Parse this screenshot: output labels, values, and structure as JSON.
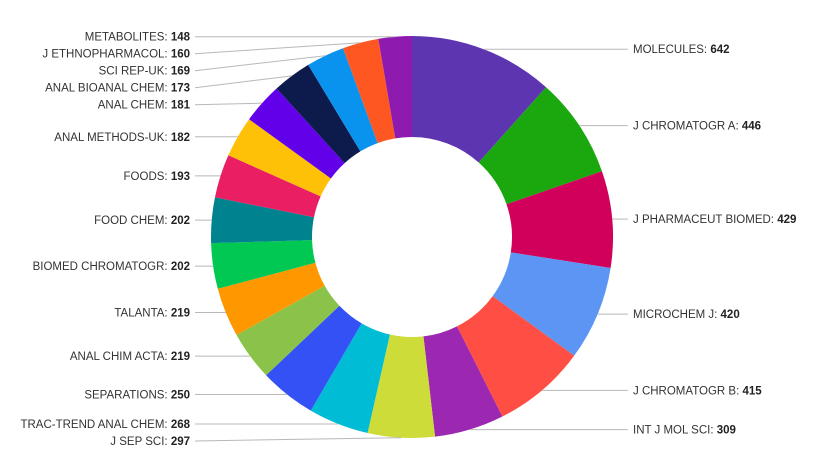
{
  "chart_data": {
    "type": "pie",
    "variant": "donut",
    "legend": "none",
    "slices": [
      {
        "label": "MOLECULES",
        "value": 642,
        "color": "#5e35b1"
      },
      {
        "label": "J CHROMATOGR A",
        "value": 446,
        "color": "#1aa80e"
      },
      {
        "label": "J PHARMACEUT BIOMED",
        "value": 429,
        "color": "#d1005a"
      },
      {
        "label": "MICROCHEM J",
        "value": 420,
        "color": "#5c95f3"
      },
      {
        "label": "J CHROMATOGR B",
        "value": 415,
        "color": "#ff4f44"
      },
      {
        "label": "INT J MOL SCI",
        "value": 309,
        "color": "#9c27b0"
      },
      {
        "label": "J SEP SCI",
        "value": 297,
        "color": "#cddc39"
      },
      {
        "label": "TRAC-TREND ANAL CHEM",
        "value": 268,
        "color": "#00bcd4"
      },
      {
        "label": "SEPARATIONS",
        "value": 250,
        "color": "#3451f5"
      },
      {
        "label": "ANAL CHIM ACTA",
        "value": 219,
        "color": "#8bc34a"
      },
      {
        "label": "TALANTA",
        "value": 219,
        "color": "#ff9800"
      },
      {
        "label": "BIOMED CHROMATOGR",
        "value": 202,
        "color": "#00c853"
      },
      {
        "label": "FOOD CHEM",
        "value": 202,
        "color": "#00838f"
      },
      {
        "label": "FOODS",
        "value": 193,
        "color": "#e91e63"
      },
      {
        "label": "ANAL METHODS-UK",
        "value": 182,
        "color": "#ffc107"
      },
      {
        "label": "ANAL CHEM",
        "value": 181,
        "color": "#6200ea"
      },
      {
        "label": "ANAL BIOANAL CHEM",
        "value": 173,
        "color": "#0d1b4c"
      },
      {
        "label": "SCI REP-UK",
        "value": 169,
        "color": "#0a93ee"
      },
      {
        "label": "J ETHNOPHARMACOL",
        "value": 160,
        "color": "#ff5722"
      },
      {
        "label": "METABOLITES",
        "value": 148,
        "color": "#8e1ab0"
      }
    ]
  }
}
